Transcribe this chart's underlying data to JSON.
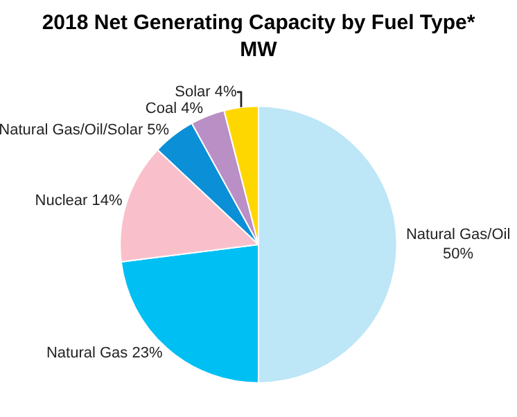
{
  "chart_data": {
    "type": "pie",
    "title": "2018 Net Generating Capacity by Fuel Type*",
    "subtitle": "MW",
    "categories": [
      "Natural Gas/Oil",
      "Natural Gas",
      "Nuclear",
      "Natural Gas/Oil/Solar",
      "Coal",
      "Solar"
    ],
    "values": [
      50,
      23,
      14,
      5,
      4,
      4
    ],
    "value_labels": [
      "50%",
      "23%",
      "14%",
      "5%",
      "4%",
      "4%"
    ],
    "colors": [
      "#bde6f7",
      "#00bff3",
      "#f9c0cb",
      "#0b8fd6",
      "#b98fc6",
      "#ffd700"
    ],
    "legend": false
  }
}
